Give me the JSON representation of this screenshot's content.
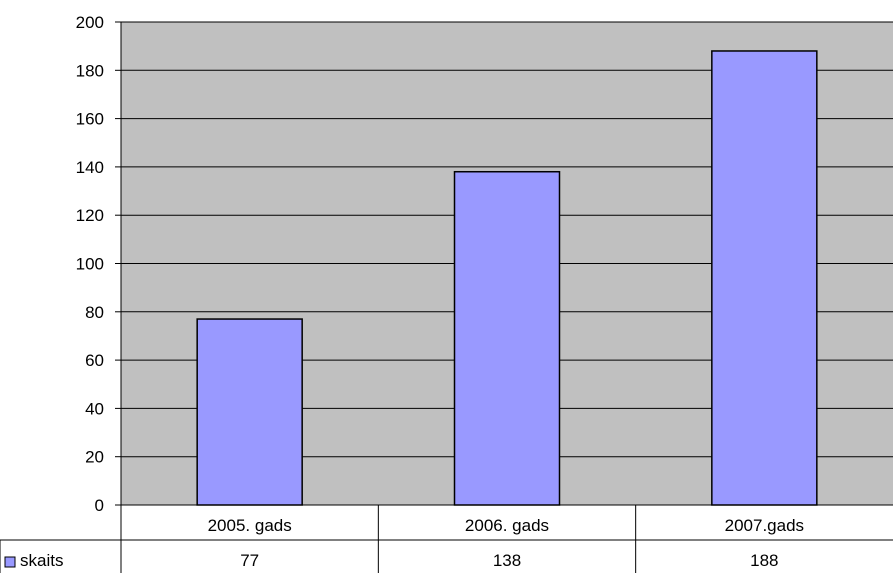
{
  "chart_data": {
    "type": "bar",
    "categories": [
      "2005. gads",
      "2006. gads",
      "2007.gads"
    ],
    "series": [
      {
        "name": "skaits",
        "values": [
          77,
          138,
          188
        ]
      }
    ],
    "ylim": [
      0,
      200
    ],
    "yticks": [
      0,
      20,
      40,
      60,
      80,
      100,
      120,
      140,
      160,
      180,
      200
    ],
    "grid": true,
    "legend": "data-table-left",
    "data_table": true,
    "colors": {
      "plot_background": "#c0c0c0",
      "bar_fill": "#9999ff",
      "bar_stroke": "#000000",
      "gridline": "#000000"
    }
  }
}
